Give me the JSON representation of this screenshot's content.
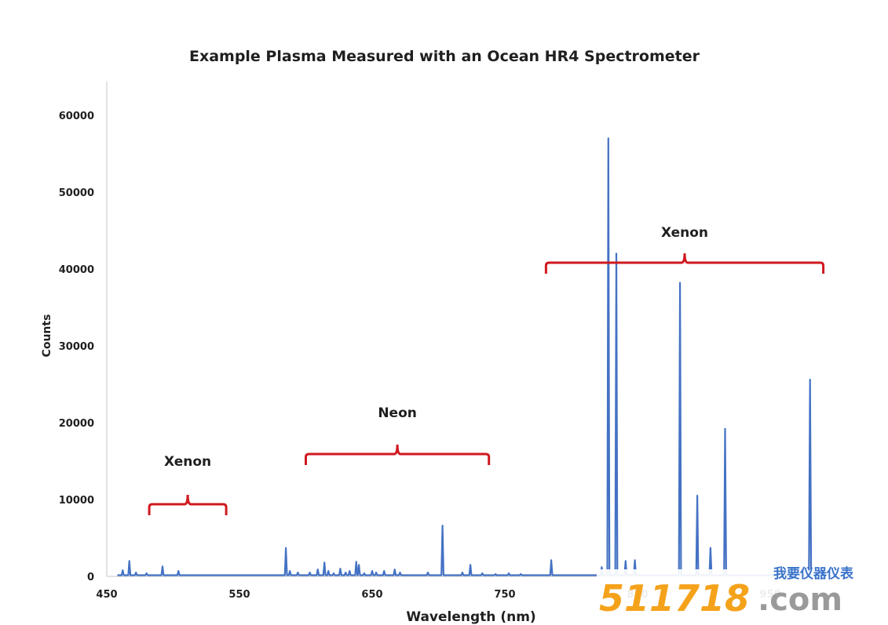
{
  "colors": {
    "series": "#4472c4",
    "bracket": "#d0191f",
    "axis": "#d0d0d0",
    "text": "#1f1f1f",
    "watermark_number": "#f5a21b",
    "watermark_com": "#9a9a9a",
    "watermark_cn": "#3a73c9"
  },
  "chart_data": {
    "type": "line",
    "title": "Example Plasma Measured with an Ocean HR4 Spectrometer",
    "xlabel": "Wavelength (nm)",
    "ylabel": "Counts",
    "xlim": [
      450,
      1050
    ],
    "ylim": [
      0,
      65000
    ],
    "xticks": [
      "450",
      "550",
      "650",
      "750",
      "850",
      "950"
    ],
    "xtick_values": [
      450,
      550,
      650,
      750,
      850,
      950
    ],
    "yticks": [
      "0",
      "10000",
      "20000",
      "30000",
      "40000",
      "50000",
      "60000"
    ],
    "ytick_values": [
      0,
      10000,
      20000,
      30000,
      40000,
      50000,
      60000
    ],
    "grid": false,
    "legend": "none",
    "series": [
      {
        "peaks": [
          {
            "x": 462,
            "y": 800
          },
          {
            "x": 467,
            "y": 2000
          },
          {
            "x": 472,
            "y": 500
          },
          {
            "x": 480,
            "y": 400
          },
          {
            "x": 492,
            "y": 1300
          },
          {
            "x": 504,
            "y": 700
          },
          {
            "x": 585,
            "y": 3700
          },
          {
            "x": 588,
            "y": 700
          },
          {
            "x": 594,
            "y": 500
          },
          {
            "x": 603,
            "y": 500
          },
          {
            "x": 609,
            "y": 900
          },
          {
            "x": 614,
            "y": 1800
          },
          {
            "x": 617,
            "y": 700
          },
          {
            "x": 621,
            "y": 400
          },
          {
            "x": 626,
            "y": 1000
          },
          {
            "x": 630,
            "y": 500
          },
          {
            "x": 633,
            "y": 700
          },
          {
            "x": 638,
            "y": 1900
          },
          {
            "x": 640,
            "y": 1500
          },
          {
            "x": 644,
            "y": 400
          },
          {
            "x": 650,
            "y": 700
          },
          {
            "x": 653,
            "y": 500
          },
          {
            "x": 659,
            "y": 700
          },
          {
            "x": 667,
            "y": 900
          },
          {
            "x": 671,
            "y": 500
          },
          {
            "x": 692,
            "y": 500
          },
          {
            "x": 703,
            "y": 6600
          },
          {
            "x": 718,
            "y": 500
          },
          {
            "x": 724,
            "y": 1500
          },
          {
            "x": 733,
            "y": 400
          },
          {
            "x": 743,
            "y": 300
          },
          {
            "x": 753,
            "y": 400
          },
          {
            "x": 762,
            "y": 300
          },
          {
            "x": 785,
            "y": 2100
          },
          {
            "x": 823,
            "y": 1200
          },
          {
            "x": 828,
            "y": 57000
          },
          {
            "x": 834,
            "y": 42000
          },
          {
            "x": 841,
            "y": 2000
          },
          {
            "x": 848,
            "y": 2100
          },
          {
            "x": 882,
            "y": 38200
          },
          {
            "x": 895,
            "y": 10500
          },
          {
            "x": 905,
            "y": 3700
          },
          {
            "x": 916,
            "y": 19200
          },
          {
            "x": 980,
            "y": 25600
          }
        ]
      }
    ],
    "annotations": [
      {
        "label": "Xenon",
        "from": 482,
        "to": 540
      },
      {
        "label": "Neon",
        "from": 600,
        "to": 738
      },
      {
        "label": "Xenon",
        "from": 781,
        "to": 990
      }
    ]
  },
  "watermark": {
    "number": "511718",
    "suffix": ".com",
    "chinese": "我要仪器仪表"
  }
}
